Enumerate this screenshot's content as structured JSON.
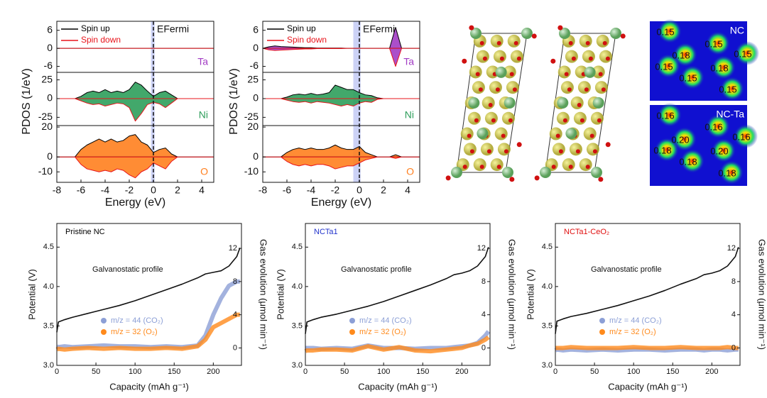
{
  "chart_data": [
    {
      "type": "pdos",
      "x_label": "Energy (eV)",
      "y_label": "PDOS (1/eV)",
      "fermi_label": "EFermi",
      "highlight": [
        -0.2,
        0.1
      ],
      "x": [
        -8,
        -7.5,
        -7,
        -6.5,
        -6,
        -5.5,
        -5,
        -4.5,
        -4,
        -3.5,
        -3,
        -2.5,
        -2,
        -1.5,
        -1,
        -0.5,
        0,
        0.5,
        1,
        1.5,
        2,
        2.5,
        3,
        3.5,
        4,
        4.5,
        5
      ],
      "xlim": [
        -8,
        5
      ],
      "xticks": [
        -8,
        -6,
        -4,
        -2,
        0,
        2,
        4
      ],
      "legend": [
        {
          "name": "Spin up",
          "color": "#000000"
        },
        {
          "name": "Spin down",
          "color": "#e8141b"
        }
      ],
      "panels": [
        {
          "label": "Ta",
          "color": "#a23cc4",
          "ylim": [
            -8,
            9
          ],
          "yticks": [
            6,
            0,
            -6
          ],
          "series": [
            {
              "values": [
                0,
                0,
                0,
                0,
                0,
                0,
                0,
                0,
                0,
                0,
                0,
                0,
                0,
                0,
                0,
                0,
                0,
                0,
                0,
                0,
                0,
                0,
                0,
                0,
                0,
                0,
                0
              ]
            },
            {
              "values": [
                0,
                0,
                0,
                0,
                0,
                0,
                0,
                0,
                0,
                0,
                0,
                0,
                0,
                0,
                0,
                0,
                0,
                0,
                0,
                0,
                0,
                0,
                0,
                0,
                0,
                0,
                0
              ]
            }
          ]
        },
        {
          "label": "Ni",
          "color": "#2e9e5b",
          "ylim": [
            -36,
            35
          ],
          "yticks": [
            25,
            0,
            -25
          ],
          "series": [
            {
              "values": [
                0,
                0,
                0,
                0,
                3,
                8,
                10,
                8,
                12,
                8,
                10,
                8,
                12,
                22,
                18,
                10,
                3,
                8,
                10,
                5,
                0,
                0,
                0,
                0,
                0,
                0,
                0
              ]
            },
            {
              "values": [
                0,
                0,
                0,
                0,
                -3,
                -6,
                -8,
                -7,
                -10,
                -8,
                -6,
                -7,
                -12,
                -30,
                -20,
                -8,
                -5,
                -7,
                -12,
                -6,
                0,
                0,
                0,
                0,
                0,
                0,
                0
              ]
            }
          ]
        },
        {
          "label": "O",
          "color": "#ff7f1e",
          "ylim": [
            -17,
            21
          ],
          "yticks": [
            20,
            0,
            -10
          ],
          "series": [
            {
              "values": [
                0,
                0,
                0,
                0,
                5,
                8,
                10,
                12,
                10,
                12,
                10,
                11,
                14,
                15,
                10,
                8,
                3,
                5,
                6,
                2,
                0,
                0,
                0,
                0,
                0,
                0,
                0
              ]
            },
            {
              "values": [
                0,
                0,
                0,
                0,
                -5,
                -8,
                -9,
                -10,
                -9,
                -10,
                -8,
                -9,
                -12,
                -14,
                -10,
                -8,
                -4,
                -6,
                -8,
                -3,
                0,
                0,
                0,
                0,
                0,
                0,
                0
              ]
            }
          ]
        }
      ]
    },
    {
      "type": "pdos",
      "x_label": "Energy (eV)",
      "y_label": "PDOS (1/eV)",
      "fermi_label": "EFermi",
      "highlight": [
        -0.5,
        0.1
      ],
      "x": [
        -8,
        -7.5,
        -7,
        -6.5,
        -6,
        -5.5,
        -5,
        -4.5,
        -4,
        -3.5,
        -3,
        -2.5,
        -2,
        -1.5,
        -1,
        -0.5,
        0,
        0.5,
        1,
        1.5,
        2,
        2.5,
        3,
        3.5,
        4,
        4.5,
        5
      ],
      "xlim": [
        -8,
        5
      ],
      "xticks": [
        -8,
        -6,
        -4,
        -2,
        0,
        2,
        4
      ],
      "legend": [
        {
          "name": "Spin up",
          "color": "#000000"
        },
        {
          "name": "Spin down",
          "color": "#e8141b"
        }
      ],
      "panels": [
        {
          "label": "Ta",
          "color": "#a23cc4",
          "ylim": [
            -8,
            9
          ],
          "yticks": [
            6,
            0,
            -6
          ],
          "series": [
            {
              "values": [
                0,
                0.5,
                0.8,
                0.6,
                0.5,
                0.4,
                0.3,
                0.2,
                0.2,
                0.1,
                0.1,
                0.1,
                0.1,
                0.1,
                0,
                0,
                0,
                0,
                0,
                0,
                0,
                0,
                7,
                0,
                0,
                0,
                0
              ]
            },
            {
              "values": [
                0,
                -0.5,
                -0.7,
                -0.6,
                -0.5,
                -0.4,
                -0.3,
                -0.2,
                -0.2,
                -0.1,
                -0.1,
                -0.1,
                -0.1,
                -0.1,
                0,
                0,
                0,
                0,
                0,
                0,
                0,
                0,
                -6,
                0,
                0,
                0,
                0
              ]
            }
          ]
        },
        {
          "label": "Ni",
          "color": "#2e9e5b",
          "ylim": [
            -36,
            35
          ],
          "yticks": [
            25,
            0,
            -25
          ],
          "series": [
            {
              "values": [
                0,
                0,
                0,
                0,
                2,
                5,
                6,
                5,
                7,
                5,
                6,
                8,
                18,
                15,
                12,
                12,
                8,
                5,
                4,
                1,
                0,
                0,
                0,
                0,
                0,
                0,
                0
              ]
            },
            {
              "values": [
                0,
                0,
                0,
                0,
                -2,
                -4,
                -5,
                -4,
                -6,
                -4,
                -5,
                -6,
                -8,
                -10,
                -8,
                -10,
                -6,
                -4,
                -5,
                -1,
                0,
                0,
                0,
                0,
                0,
                0,
                0
              ]
            }
          ]
        },
        {
          "label": "O",
          "color": "#ff7f1e",
          "ylim": [
            -17,
            21
          ],
          "yticks": [
            20,
            0,
            -10
          ],
          "series": [
            {
              "values": [
                0,
                0,
                0,
                0,
                3,
                5,
                6,
                5,
                6,
                5,
                5,
                6,
                8,
                6,
                5,
                5,
                7,
                3,
                1.5,
                0,
                0,
                0,
                1.5,
                0,
                0,
                0,
                0
              ]
            },
            {
              "values": [
                0,
                0,
                0,
                0,
                -3,
                -5,
                -6,
                -5,
                -6,
                -5,
                -5,
                -6,
                -8,
                -7,
                -6,
                -6,
                -4,
                -2,
                -1,
                0,
                0,
                0,
                -1,
                0,
                0,
                0,
                0
              ]
            }
          ]
        }
      ]
    },
    {
      "type": "dems",
      "title": "Pristine NC",
      "title_color": "#000000",
      "x_label": "Capacity (mAh g⁻¹)",
      "y_label": "Potential (V)",
      "y2_label": "Gas evolution (μmol min⁻¹)",
      "x": [
        0,
        2,
        10,
        20,
        40,
        60,
        80,
        100,
        120,
        140,
        160,
        180,
        190,
        200,
        210,
        220,
        230,
        234
      ],
      "xlim": [
        0,
        236
      ],
      "xticks": [
        0,
        50,
        100,
        150,
        200
      ],
      "ylim": [
        3,
        4.8
      ],
      "yticks": [
        {
          "value": 3,
          "label": "3.0"
        },
        3.5,
        {
          "value": 4,
          "label": "4.0"
        },
        4.5
      ],
      "y2lim": [
        -2.1,
        15
      ],
      "y2ticks": [
        0,
        4,
        8,
        12
      ],
      "series": [
        {
          "name": "Galvanostatic profile",
          "color": "#111111",
          "values": [
            3.42,
            3.55,
            3.58,
            3.61,
            3.66,
            3.71,
            3.76,
            3.82,
            3.89,
            3.96,
            4.03,
            4.11,
            4.16,
            4.18,
            4.2,
            4.26,
            4.38,
            4.49
          ]
        },
        {
          "name": "m/z = 44 (CO₂)",
          "color": "#8c9fd6",
          "axis": "y2",
          "values": [
            0.2,
            0.1,
            0.2,
            0.1,
            0.2,
            0.3,
            0.2,
            0.2,
            0.1,
            0.2,
            0.1,
            0.3,
            1.5,
            4,
            6,
            7.5,
            8,
            8
          ]
        },
        {
          "name": "m/z = 32 (O₂)",
          "color": "#ff8a1c",
          "axis": "y2",
          "values": [
            -0.2,
            -0.1,
            -0.2,
            -0.1,
            0,
            -0.1,
            0,
            -0.1,
            -0.1,
            0,
            -0.1,
            0.2,
            1,
            2.5,
            3,
            3.5,
            4,
            4
          ]
        }
      ]
    },
    {
      "type": "dems",
      "title": "NCTa1",
      "title_color": "#2233cc",
      "x_label": "Capacity (mAh g⁻¹)",
      "y_label": "Potential (V)",
      "y2_label": "Gas evolution (μmol min⁻¹)",
      "x": [
        0,
        2,
        10,
        20,
        40,
        60,
        80,
        100,
        120,
        140,
        160,
        180,
        190,
        200,
        210,
        220,
        230,
        234
      ],
      "xlim": [
        0,
        236
      ],
      "xticks": [
        0,
        50,
        100,
        150,
        200
      ],
      "ylim": [
        3,
        4.8
      ],
      "yticks": [
        {
          "value": 3,
          "label": "3.0"
        },
        3.5,
        {
          "value": 4,
          "label": "4.0"
        },
        4.5
      ],
      "y2lim": [
        -2.1,
        15
      ],
      "y2ticks": [
        0,
        4,
        8,
        12
      ],
      "series": [
        {
          "name": "Galvanostatic profile",
          "color": "#111111",
          "values": [
            3.4,
            3.55,
            3.58,
            3.61,
            3.65,
            3.7,
            3.75,
            3.81,
            3.88,
            3.95,
            4.02,
            4.1,
            4.15,
            4.17,
            4.2,
            4.26,
            4.38,
            4.5
          ]
        },
        {
          "name": "m/z = 44 (CO₂)",
          "color": "#8c9fd6",
          "axis": "y2",
          "values": [
            0,
            0,
            0,
            -0.1,
            0,
            -0.1,
            0.3,
            0,
            0,
            -0.1,
            0,
            0,
            0.1,
            0.2,
            0.3,
            0.6,
            1.5,
            2
          ]
        },
        {
          "name": "m/z = 32 (O₂)",
          "color": "#ff8a1c",
          "axis": "y2",
          "values": [
            -0.4,
            -0.3,
            -0.3,
            -0.2,
            -0.2,
            -0.3,
            0.2,
            -0.2,
            0.1,
            -0.3,
            -0.4,
            -0.2,
            -0.1,
            0,
            0.3,
            0.5,
            1,
            1.3
          ]
        }
      ]
    },
    {
      "type": "dems",
      "title": "NCTa1-CeO₂",
      "title_color": "#e01010",
      "x_label": "Capacity (mAh g⁻¹)",
      "y_label": "Potential (V)",
      "y2_label": "Gas evolution (μmol min⁻¹)",
      "x": [
        0,
        2,
        10,
        20,
        40,
        60,
        80,
        100,
        120,
        140,
        160,
        180,
        190,
        200,
        210,
        220,
        230,
        234
      ],
      "xlim": [
        0,
        236
      ],
      "xticks": [
        0,
        50,
        100,
        150,
        200
      ],
      "ylim": [
        3,
        4.8
      ],
      "yticks": [
        {
          "value": 3,
          "label": "3.0"
        },
        3.5,
        {
          "value": 4,
          "label": "4.0"
        },
        4.5
      ],
      "y2lim": [
        -2.1,
        15
      ],
      "y2ticks": [
        0,
        4,
        8,
        12
      ],
      "series": [
        {
          "name": "Galvanostatic profile",
          "color": "#111111",
          "values": [
            3.4,
            3.56,
            3.59,
            3.62,
            3.66,
            3.71,
            3.76,
            3.82,
            3.88,
            3.95,
            4.03,
            4.1,
            4.15,
            4.17,
            4.2,
            4.26,
            4.38,
            4.5
          ]
        },
        {
          "name": "m/z = 44 (CO₂)",
          "color": "#8c9fd6",
          "axis": "y2",
          "values": [
            -0.3,
            -0.2,
            -0.3,
            -0.2,
            -0.3,
            -0.2,
            -0.3,
            -0.2,
            -0.2,
            -0.3,
            -0.2,
            -0.2,
            -0.3,
            -0.2,
            -0.2,
            -0.3,
            -0.2,
            -0.2
          ]
        },
        {
          "name": "m/z = 32 (O₂)",
          "color": "#ff8a1c",
          "axis": "y2",
          "values": [
            0,
            0,
            0,
            0.1,
            0,
            0,
            0,
            0.1,
            0,
            0,
            0.1,
            0,
            0,
            0,
            0,
            0.1,
            0,
            0
          ]
        }
      ]
    }
  ],
  "density_maps": [
    {
      "title": "NC",
      "labels": [
        "0.15",
        "0.15",
        "0.15",
        "0.18",
        "0.15",
        "0.18",
        "0.15",
        "0.15"
      ]
    },
    {
      "title": "NC-Ta",
      "labels": [
        "0.16",
        "0.16",
        "0.16",
        "0.20",
        "0.18",
        "0.20",
        "0.18",
        "0.18"
      ]
    }
  ]
}
